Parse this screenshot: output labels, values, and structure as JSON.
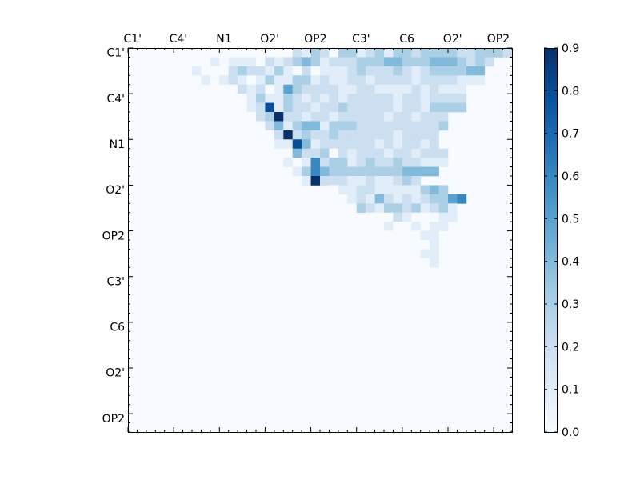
{
  "chart_data": {
    "type": "heatmap",
    "title": "",
    "colormap": "Blues",
    "rows": 42,
    "cols": 42,
    "tick_every": 5,
    "x_tick_labels": [
      "C1'",
      "C4'",
      "N1",
      "O2'",
      "OP2",
      "C3'",
      "C6",
      "O2'",
      "OP2"
    ],
    "y_tick_labels": [
      "C1'",
      "C4'",
      "N1",
      "O2'",
      "OP2",
      "C3'",
      "C6",
      "O2'",
      "OP2"
    ],
    "colorbar": {
      "min": 0.0,
      "max": 0.9,
      "tick_labels": [
        "0.0",
        "0.1",
        "0.2",
        "0.3",
        "0.4",
        "0.5",
        "0.6",
        "0.7",
        "0.8",
        "0.9"
      ]
    },
    "values": [
      "..00..0000000...00213203312313323333223332222",
      "......0001011102123431222333443334443232",
      "...000010002322131020111232223212333344",
      "....00001012101311331211221222212222111",
      "......0000002120153222211221111212111",
      "........00000131132121212222212212222",
      "..........000128132212232222212213333",
      "...........000239221221222221221222",
      "............00024134413332222222223",
      "..............00292322322222212222",
      "...............0118412222221212212",
      "................0042230212221221222",
      ".................101623312322322111",
      "..................1364333333334444",
      "...................1922211211232",
      "......................0112211111343",
      "........................1214212123356",
      ".........................32133231231",
      "..........................0002100011",
      "...........................01001011",
      "............................000011",
      "..............................0001",
      "...............................011",
      "................................01",
      "..................................",
      "..................................",
      "..................................",
      "..................................",
      "..................................",
      "..................................",
      "..................................",
      "..................................",
      "..................................",
      "..................................",
      "..................................",
      "..................................",
      "..................................",
      "..................................",
      "..................................",
      "..................................",
      "..................................",
      ".................................."
    ],
    "value_encoding": "digit d = value d/10; '.' = 0.0"
  }
}
